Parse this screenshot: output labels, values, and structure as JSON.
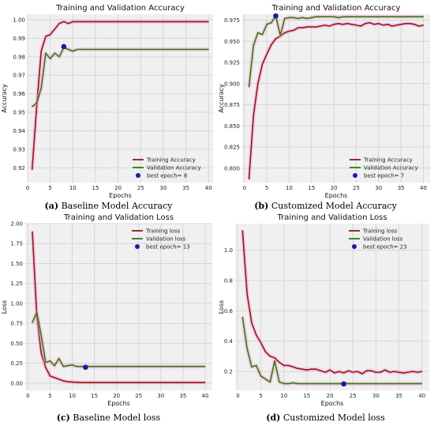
{
  "chart_data": [
    {
      "type": "line",
      "title": "Training and Validation Accuracy",
      "xlabel": "Epochs",
      "ylabel": "Accuracy",
      "xlim": [
        0,
        41
      ],
      "ylim": [
        0.912,
        1.003
      ],
      "xticks": [
        0,
        5,
        10,
        15,
        20,
        25,
        30,
        35,
        40
      ],
      "yticks": [
        0.92,
        0.93,
        0.94,
        0.95,
        0.96,
        0.97,
        0.98,
        0.99,
        1.0
      ],
      "ytick_labels": [
        "0.92",
        "0.93",
        "0.94",
        "0.95",
        "0.96",
        "0.97",
        "0.98",
        "0.99",
        "1.00"
      ],
      "grid": true,
      "legend_position": "lower-right",
      "series": [
        {
          "name": "Training Accuracy",
          "color": "#8b1a1a",
          "x": [
            1,
            2,
            3,
            4,
            5,
            6,
            7,
            8,
            9,
            10,
            11,
            12,
            13,
            14,
            15,
            16,
            17,
            18,
            19,
            20,
            21,
            22,
            23,
            24,
            25,
            26,
            27,
            28,
            29,
            30,
            31,
            32,
            33,
            34,
            35,
            36,
            37,
            38,
            39,
            40
          ],
          "values": [
            0.919,
            0.953,
            0.983,
            0.991,
            0.992,
            0.995,
            0.998,
            0.999,
            0.998,
            0.999,
            0.999,
            0.999,
            0.999,
            0.999,
            0.999,
            0.999,
            0.999,
            0.999,
            0.999,
            0.999,
            0.999,
            0.999,
            0.999,
            0.999,
            0.999,
            0.999,
            0.999,
            0.999,
            0.999,
            0.999,
            0.999,
            0.999,
            0.999,
            0.999,
            0.999,
            0.999,
            0.999,
            0.999,
            0.999,
            0.999
          ]
        },
        {
          "name": "Validation Accuracy",
          "color": "#2e7d12",
          "x": [
            1,
            2,
            3,
            4,
            5,
            6,
            7,
            8,
            9,
            10,
            11,
            12,
            13,
            14,
            15,
            16,
            17,
            18,
            19,
            20,
            21,
            22,
            23,
            24,
            25,
            26,
            27,
            28,
            29,
            30,
            31,
            32,
            33,
            34,
            35,
            36,
            37,
            38,
            39,
            40
          ],
          "values": [
            0.953,
            0.955,
            0.963,
            0.982,
            0.979,
            0.982,
            0.98,
            0.985,
            0.984,
            0.983,
            0.984,
            0.984,
            0.984,
            0.984,
            0.984,
            0.984,
            0.984,
            0.984,
            0.984,
            0.984,
            0.984,
            0.984,
            0.984,
            0.984,
            0.984,
            0.984,
            0.984,
            0.984,
            0.984,
            0.984,
            0.984,
            0.984,
            0.984,
            0.984,
            0.984,
            0.984,
            0.984,
            0.984,
            0.984,
            0.984
          ]
        }
      ],
      "best_point": {
        "label": "best epoch= 8",
        "x": 8,
        "y": 0.9855,
        "color": "#1a1aa6"
      },
      "caption_tag": "(a)",
      "caption_text": "Baseline Model Accuracy"
    },
    {
      "type": "line",
      "title": "Training and Validation Accuracy",
      "xlabel": "Epochs",
      "ylabel": "Accuracy",
      "xlim": [
        -0.5,
        41.5
      ],
      "ylim": [
        0.783,
        0.982
      ],
      "xticks": [
        0,
        5,
        10,
        15,
        20,
        25,
        30,
        35,
        40
      ],
      "yticks": [
        0.8,
        0.825,
        0.85,
        0.875,
        0.9,
        0.925,
        0.95,
        0.975
      ],
      "ytick_labels": [
        "0.800",
        "0.825",
        "0.850",
        "0.875",
        "0.900",
        "0.925",
        "0.950",
        "0.975"
      ],
      "grid": true,
      "legend_position": "lower-right",
      "series": [
        {
          "name": "Training Accuracy",
          "color": "#8b1a1a",
          "x": [
            1,
            2,
            3,
            4,
            5,
            6,
            7,
            8,
            9,
            10,
            11,
            12,
            13,
            14,
            15,
            16,
            17,
            18,
            19,
            20,
            21,
            22,
            23,
            24,
            25,
            26,
            27,
            28,
            29,
            30,
            31,
            32,
            33,
            34,
            35,
            36,
            37,
            38,
            39,
            40
          ],
          "values": [
            0.787,
            0.862,
            0.9,
            0.923,
            0.935,
            0.946,
            0.953,
            0.956,
            0.96,
            0.962,
            0.963,
            0.966,
            0.966,
            0.967,
            0.967,
            0.967,
            0.968,
            0.969,
            0.968,
            0.97,
            0.971,
            0.97,
            0.971,
            0.97,
            0.969,
            0.968,
            0.971,
            0.972,
            0.97,
            0.971,
            0.969,
            0.97,
            0.968,
            0.969,
            0.97,
            0.971,
            0.971,
            0.97,
            0.968,
            0.969
          ]
        },
        {
          "name": "Validation Accuracy",
          "color": "#2e7d12",
          "x": [
            1,
            2,
            3,
            4,
            5,
            6,
            7,
            8,
            9,
            10,
            11,
            12,
            13,
            14,
            15,
            16,
            17,
            18,
            19,
            20,
            21,
            22,
            23,
            24,
            25,
            26,
            27,
            28,
            29,
            30,
            31,
            32,
            33,
            34,
            35,
            36,
            37,
            38,
            39,
            40
          ],
          "values": [
            0.896,
            0.945,
            0.96,
            0.958,
            0.97,
            0.972,
            0.98,
            0.957,
            0.977,
            0.978,
            0.978,
            0.977,
            0.978,
            0.977,
            0.978,
            0.979,
            0.979,
            0.979,
            0.979,
            0.979,
            0.978,
            0.979,
            0.979,
            0.979,
            0.979,
            0.979,
            0.979,
            0.979,
            0.979,
            0.979,
            0.979,
            0.979,
            0.979,
            0.979,
            0.979,
            0.979,
            0.979,
            0.979,
            0.979,
            0.979
          ]
        }
      ],
      "best_point": {
        "label": "best epoch= 7",
        "x": 7,
        "y": 0.98,
        "color": "#1a1aa6"
      },
      "caption_tag": "(b)",
      "caption_text": "Customized Model Accuracy"
    },
    {
      "type": "line",
      "title": "Training and Validation Loss",
      "xlabel": "Epochs",
      "ylabel": "Loss",
      "xlim": [
        -0.6,
        41.6
      ],
      "ylim": [
        -0.09,
        2.0
      ],
      "xticks": [
        0,
        5,
        10,
        15,
        20,
        25,
        30,
        35,
        40
      ],
      "yticks": [
        0.0,
        0.25,
        0.5,
        0.75,
        1.0,
        1.25,
        1.5,
        1.75,
        2.0
      ],
      "ytick_labels": [
        "0.00",
        "0.25",
        "0.50",
        "0.75",
        "1.00",
        "1.25",
        "1.50",
        "1.75",
        "2.00"
      ],
      "grid": true,
      "legend_position": "upper-right",
      "series": [
        {
          "name": "Training loss",
          "color": "#8b1a1a",
          "x": [
            1,
            2,
            3,
            4,
            5,
            6,
            7,
            8,
            9,
            10,
            11,
            12,
            13,
            14,
            15,
            16,
            17,
            18,
            19,
            20,
            21,
            22,
            23,
            24,
            25,
            26,
            27,
            28,
            29,
            30,
            31,
            32,
            33,
            34,
            35,
            36,
            37,
            38,
            39,
            40
          ],
          "values": [
            1.9,
            0.85,
            0.38,
            0.2,
            0.09,
            0.07,
            0.05,
            0.03,
            0.02,
            0.015,
            0.012,
            0.01,
            0.01,
            0.01,
            0.01,
            0.01,
            0.01,
            0.01,
            0.01,
            0.01,
            0.01,
            0.01,
            0.01,
            0.01,
            0.01,
            0.01,
            0.01,
            0.01,
            0.01,
            0.01,
            0.01,
            0.01,
            0.01,
            0.01,
            0.01,
            0.01,
            0.01,
            0.01,
            0.01,
            0.01
          ]
        },
        {
          "name": "Validation loss",
          "color": "#2e7d12",
          "x": [
            1,
            2,
            3,
            4,
            5,
            6,
            7,
            8,
            9,
            10,
            11,
            12,
            13,
            14,
            15,
            16,
            17,
            18,
            19,
            20,
            21,
            22,
            23,
            24,
            25,
            26,
            27,
            28,
            29,
            30,
            31,
            32,
            33,
            34,
            35,
            36,
            37,
            38,
            39,
            40
          ],
          "values": [
            0.76,
            0.89,
            0.6,
            0.26,
            0.28,
            0.22,
            0.31,
            0.21,
            0.22,
            0.23,
            0.21,
            0.21,
            0.21,
            0.21,
            0.21,
            0.21,
            0.21,
            0.21,
            0.21,
            0.21,
            0.21,
            0.21,
            0.21,
            0.21,
            0.21,
            0.21,
            0.21,
            0.21,
            0.21,
            0.21,
            0.21,
            0.21,
            0.21,
            0.21,
            0.21,
            0.21,
            0.21,
            0.21,
            0.21,
            0.21
          ]
        }
      ],
      "best_point": {
        "label": "best epoch= 13",
        "x": 13,
        "y": 0.2,
        "color": "#1a1aa6"
      },
      "caption_tag": "(c)",
      "caption_text": "Baseline Model loss"
    },
    {
      "type": "line",
      "title": "Training and Validation Loss",
      "xlabel": "Epochs",
      "ylabel": "Loss",
      "xlim": [
        -0.6,
        41.6
      ],
      "ylim": [
        0.075,
        1.175
      ],
      "xticks": [
        0,
        5,
        10,
        15,
        20,
        25,
        30,
        35,
        40
      ],
      "yticks": [
        0.2,
        0.4,
        0.6,
        0.8,
        1.0
      ],
      "ytick_labels": [
        "0.2",
        "0.4",
        "0.6",
        "0.8",
        "1.0"
      ],
      "grid": true,
      "legend_position": "upper-right",
      "series": [
        {
          "name": "Training loss",
          "color": "#8b1a1a",
          "x": [
            1,
            2,
            3,
            4,
            5,
            6,
            7,
            8,
            9,
            10,
            11,
            12,
            13,
            14,
            15,
            16,
            17,
            18,
            19,
            20,
            21,
            22,
            23,
            24,
            25,
            26,
            27,
            28,
            29,
            30,
            31,
            32,
            33,
            34,
            35,
            36,
            37,
            38,
            39,
            40
          ],
          "values": [
            1.13,
            0.71,
            0.52,
            0.44,
            0.39,
            0.33,
            0.3,
            0.29,
            0.26,
            0.24,
            0.24,
            0.23,
            0.22,
            0.215,
            0.21,
            0.215,
            0.215,
            0.205,
            0.195,
            0.21,
            0.19,
            0.2,
            0.19,
            0.205,
            0.195,
            0.2,
            0.185,
            0.205,
            0.205,
            0.195,
            0.195,
            0.21,
            0.195,
            0.2,
            0.195,
            0.19,
            0.195,
            0.2,
            0.195,
            0.2
          ]
        },
        {
          "name": "Validation loss",
          "color": "#2e7d12",
          "x": [
            1,
            2,
            3,
            4,
            5,
            6,
            7,
            8,
            9,
            10,
            11,
            12,
            13,
            14,
            15,
            16,
            17,
            18,
            19,
            20,
            21,
            22,
            23,
            24,
            25,
            26,
            27,
            28,
            29,
            30,
            31,
            32,
            33,
            34,
            35,
            36,
            37,
            38,
            39,
            40
          ],
          "values": [
            0.56,
            0.35,
            0.23,
            0.24,
            0.17,
            0.15,
            0.13,
            0.27,
            0.13,
            0.12,
            0.12,
            0.125,
            0.12,
            0.12,
            0.12,
            0.12,
            0.12,
            0.12,
            0.12,
            0.12,
            0.12,
            0.12,
            0.12,
            0.12,
            0.12,
            0.12,
            0.12,
            0.12,
            0.12,
            0.12,
            0.12,
            0.12,
            0.12,
            0.12,
            0.12,
            0.12,
            0.12,
            0.12,
            0.12,
            0.12
          ]
        }
      ],
      "best_point": {
        "label": "best epoch= 23",
        "x": 23,
        "y": 0.118,
        "color": "#1a1aa6"
      },
      "caption_tag": "(d)",
      "caption_text": "Customized Model loss"
    }
  ]
}
